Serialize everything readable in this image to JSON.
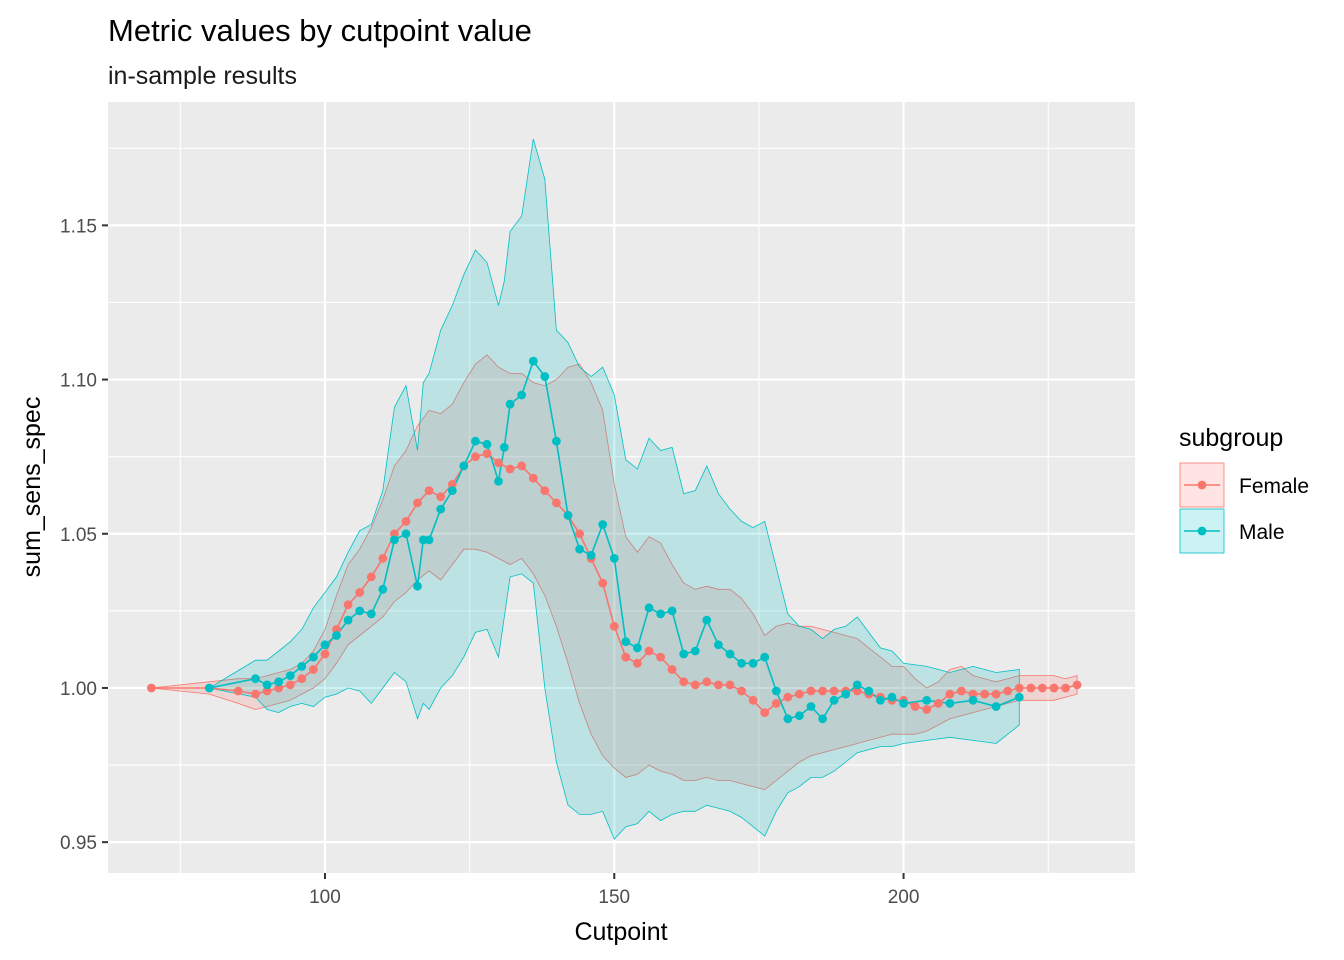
{
  "chart_data": {
    "type": "line",
    "title": "Metric values by cutpoint value",
    "subtitle": "in-sample results",
    "xlabel": "Cutpoint",
    "ylabel": "sum_sens_spec",
    "xlim": [
      62.5,
      240
    ],
    "ylim": [
      0.94,
      1.19
    ],
    "x_ticks": [
      100,
      150,
      200
    ],
    "x_tick_labels": [
      "100",
      "150",
      "200"
    ],
    "y_ticks": [
      0.95,
      1.0,
      1.05,
      1.1,
      1.15
    ],
    "y_tick_labels": [
      "0.95",
      "1.00",
      "1.05",
      "1.10",
      "1.15"
    ],
    "grid": true,
    "legend": {
      "title": "subgroup",
      "position": "right"
    },
    "series": [
      {
        "name": "Female",
        "color": "#F8766D",
        "band_opacity": 0.2,
        "x": [
          70,
          80,
          85,
          88,
          90,
          92,
          94,
          96,
          98,
          100,
          102,
          104,
          106,
          108,
          110,
          112,
          114,
          116,
          118,
          120,
          122,
          124,
          126,
          128,
          130,
          132,
          134,
          136,
          138,
          140,
          142,
          144,
          146,
          148,
          150,
          152,
          154,
          156,
          158,
          160,
          162,
          164,
          166,
          168,
          170,
          172,
          174,
          176,
          178,
          180,
          182,
          184,
          186,
          188,
          190,
          192,
          194,
          196,
          198,
          200,
          202,
          204,
          206,
          208,
          210,
          212,
          214,
          216,
          218,
          220,
          222,
          224,
          226,
          228,
          230
        ],
        "y": [
          1.0,
          1.0,
          0.999,
          0.998,
          0.999,
          1.0,
          1.001,
          1.003,
          1.006,
          1.011,
          1.019,
          1.027,
          1.031,
          1.036,
          1.042,
          1.05,
          1.054,
          1.06,
          1.064,
          1.062,
          1.066,
          1.072,
          1.075,
          1.076,
          1.073,
          1.071,
          1.072,
          1.068,
          1.064,
          1.06,
          1.056,
          1.05,
          1.042,
          1.034,
          1.02,
          1.01,
          1.008,
          1.012,
          1.01,
          1.006,
          1.002,
          1.001,
          1.002,
          1.001,
          1.001,
          0.999,
          0.996,
          0.992,
          0.995,
          0.997,
          0.998,
          0.999,
          0.999,
          0.999,
          0.999,
          0.999,
          0.998,
          0.997,
          0.996,
          0.996,
          0.994,
          0.993,
          0.995,
          0.998,
          0.999,
          0.998,
          0.998,
          0.998,
          0.999,
          1.0,
          1.0,
          1.0,
          1.0,
          1.0,
          1.001
        ],
        "lower": [
          1.0,
          0.998,
          0.995,
          0.993,
          0.994,
          0.995,
          0.996,
          0.998,
          1.0,
          1.003,
          1.008,
          1.014,
          1.017,
          1.02,
          1.023,
          1.028,
          1.031,
          1.035,
          1.038,
          1.035,
          1.04,
          1.045,
          1.045,
          1.044,
          1.042,
          1.04,
          1.042,
          1.037,
          1.03,
          1.02,
          1.008,
          0.995,
          0.985,
          0.978,
          0.974,
          0.971,
          0.972,
          0.975,
          0.973,
          0.972,
          0.97,
          0.97,
          0.971,
          0.97,
          0.97,
          0.969,
          0.968,
          0.967,
          0.97,
          0.973,
          0.976,
          0.978,
          0.979,
          0.98,
          0.981,
          0.982,
          0.983,
          0.984,
          0.985,
          0.985,
          0.985,
          0.986,
          0.988,
          0.99,
          0.991,
          0.992,
          0.993,
          0.994,
          0.995,
          0.996,
          0.996,
          0.996,
          0.996,
          0.997,
          0.998
        ],
        "upper": [
          1.0,
          1.002,
          1.003,
          1.003,
          1.004,
          1.005,
          1.006,
          1.008,
          1.012,
          1.019,
          1.03,
          1.04,
          1.045,
          1.052,
          1.061,
          1.072,
          1.077,
          1.085,
          1.09,
          1.089,
          1.092,
          1.099,
          1.105,
          1.108,
          1.104,
          1.102,
          1.102,
          1.099,
          1.098,
          1.1,
          1.104,
          1.105,
          1.099,
          1.09,
          1.066,
          1.049,
          1.044,
          1.049,
          1.047,
          1.04,
          1.034,
          1.032,
          1.033,
          1.032,
          1.032,
          1.029,
          1.024,
          1.017,
          1.02,
          1.021,
          1.02,
          1.02,
          1.019,
          1.018,
          1.017,
          1.016,
          1.013,
          1.01,
          1.007,
          1.007,
          1.003,
          1.0,
          1.002,
          1.006,
          1.007,
          1.004,
          1.003,
          1.002,
          1.003,
          1.004,
          1.004,
          1.004,
          1.004,
          1.003,
          1.004
        ]
      },
      {
        "name": "Male",
        "color": "#00BFC4",
        "band_opacity": 0.2,
        "x": [
          80,
          88,
          90,
          92,
          94,
          96,
          98,
          100,
          102,
          104,
          106,
          108,
          110,
          112,
          114,
          116,
          117,
          118,
          120,
          122,
          124,
          126,
          128,
          130,
          131,
          132,
          134,
          136,
          138,
          140,
          142,
          144,
          146,
          148,
          150,
          152,
          154,
          156,
          158,
          160,
          162,
          164,
          166,
          168,
          170,
          172,
          174,
          176,
          178,
          180,
          182,
          184,
          186,
          188,
          190,
          192,
          194,
          196,
          198,
          200,
          204,
          208,
          212,
          216,
          220
        ],
        "y": [
          1.0,
          1.003,
          1.001,
          1.002,
          1.004,
          1.007,
          1.01,
          1.014,
          1.017,
          1.022,
          1.025,
          1.024,
          1.032,
          1.048,
          1.05,
          1.033,
          1.048,
          1.048,
          1.058,
          1.064,
          1.072,
          1.08,
          1.079,
          1.067,
          1.078,
          1.092,
          1.095,
          1.106,
          1.101,
          1.08,
          1.056,
          1.045,
          1.043,
          1.053,
          1.042,
          1.015,
          1.013,
          1.026,
          1.024,
          1.025,
          1.011,
          1.012,
          1.022,
          1.014,
          1.011,
          1.008,
          1.008,
          1.01,
          0.999,
          0.99,
          0.991,
          0.994,
          0.99,
          0.996,
          0.998,
          1.001,
          0.999,
          0.996,
          0.997,
          0.995,
          0.996,
          0.995,
          0.996,
          0.994,
          0.997
        ],
        "lower": [
          1.0,
          0.997,
          0.993,
          0.992,
          0.994,
          0.995,
          0.994,
          0.997,
          0.998,
          1.0,
          0.999,
          0.995,
          1.0,
          1.005,
          1.002,
          0.99,
          0.995,
          0.993,
          1.0,
          1.004,
          1.01,
          1.018,
          1.019,
          1.01,
          1.023,
          1.036,
          1.037,
          1.034,
          1.0,
          0.976,
          0.962,
          0.959,
          0.959,
          0.96,
          0.951,
          0.955,
          0.956,
          0.96,
          0.957,
          0.959,
          0.96,
          0.96,
          0.962,
          0.961,
          0.96,
          0.958,
          0.955,
          0.952,
          0.96,
          0.966,
          0.968,
          0.971,
          0.971,
          0.973,
          0.976,
          0.979,
          0.98,
          0.981,
          0.981,
          0.982,
          0.983,
          0.984,
          0.983,
          0.982,
          0.988
        ],
        "upper": [
          1.0,
          1.009,
          1.009,
          1.012,
          1.015,
          1.019,
          1.026,
          1.031,
          1.036,
          1.044,
          1.051,
          1.053,
          1.064,
          1.091,
          1.098,
          1.077,
          1.099,
          1.102,
          1.116,
          1.124,
          1.134,
          1.142,
          1.138,
          1.124,
          1.132,
          1.148,
          1.153,
          1.178,
          1.165,
          1.116,
          1.112,
          1.104,
          1.101,
          1.104,
          1.095,
          1.074,
          1.071,
          1.081,
          1.077,
          1.078,
          1.063,
          1.064,
          1.072,
          1.063,
          1.058,
          1.054,
          1.052,
          1.054,
          1.039,
          1.024,
          1.02,
          1.019,
          1.016,
          1.019,
          1.02,
          1.023,
          1.018,
          1.013,
          1.012,
          1.008,
          1.007,
          1.005,
          1.007,
          1.005,
          1.006
        ]
      }
    ]
  }
}
